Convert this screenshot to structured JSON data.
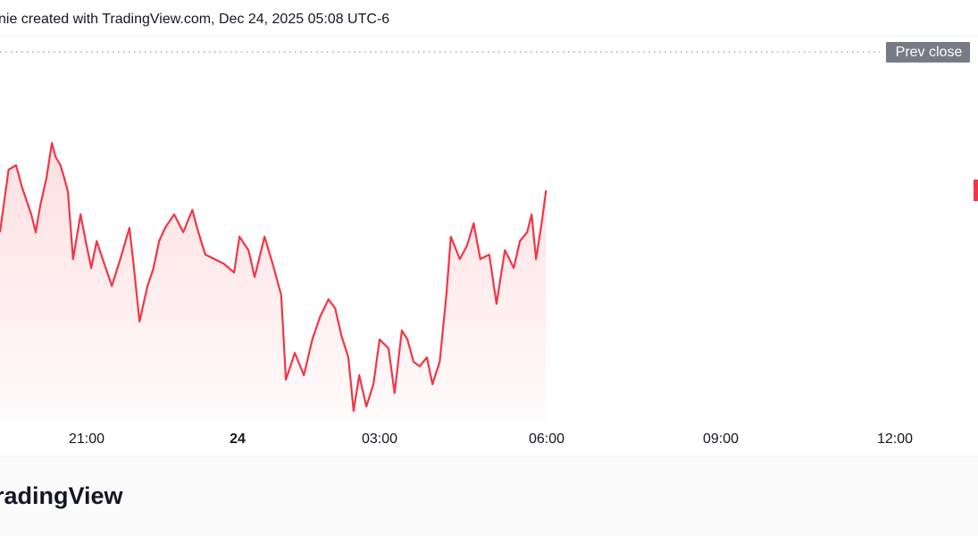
{
  "header": {
    "text": "nie created with TradingView.com, Dec 24, 2025 05:08 UTC-6"
  },
  "footer": {
    "logo": "radingView"
  },
  "chart_data": {
    "type": "area",
    "color": "#f23645",
    "x": [
      -4.72,
      -4.55,
      -4.4,
      -4.28,
      -4.1,
      -4.01,
      -3.92,
      -3.8,
      -3.69,
      -3.62,
      -3.52,
      -3.44,
      -3.37,
      -3.27,
      -3.12,
      -3.0,
      -2.91,
      -2.8,
      -2.68,
      -2.5,
      -2.33,
      -2.15,
      -2.06,
      -1.95,
      -1.79,
      -1.67,
      -1.56,
      -1.44,
      -1.26,
      -1.08,
      -0.9,
      -0.78,
      -0.64,
      -0.46,
      -0.28,
      -0.07,
      0.04,
      0.23,
      0.36,
      0.57,
      0.74,
      0.92,
      1.02,
      1.21,
      1.4,
      1.58,
      1.74,
      1.92,
      2.06,
      2.19,
      2.34,
      2.45,
      2.57,
      2.72,
      2.87,
      3.0,
      3.16,
      3.27,
      3.4,
      3.5,
      3.61,
      3.72,
      3.85,
      3.95,
      4.08,
      4.2,
      4.28,
      4.44,
      4.57,
      4.69,
      4.81,
      4.97,
      5.1,
      5.25,
      5.41,
      5.52,
      5.65,
      5.73,
      5.81,
      5.91,
      5.99
    ],
    "values": [
      210,
      280,
      285,
      260,
      230,
      210,
      240,
      270,
      310,
      295,
      285,
      270,
      255,
      180,
      230,
      195,
      170,
      200,
      180,
      150,
      180,
      215,
      170,
      110,
      150,
      170,
      200,
      215,
      230,
      210,
      235,
      210,
      185,
      180,
      175,
      165,
      205,
      190,
      160,
      205,
      175,
      140,
      45,
      75,
      50,
      90,
      115,
      135,
      125,
      95,
      70,
      10,
      50,
      15,
      40,
      90,
      80,
      30,
      100,
      90,
      65,
      60,
      70,
      40,
      65,
      140,
      205,
      180,
      195,
      220,
      180,
      185,
      130,
      190,
      170,
      200,
      210,
      230,
      180,
      220,
      257
    ],
    "xlim": [
      -4.72,
      13.43
    ],
    "xticks": [
      {
        "value": -3,
        "label": "21:00"
      },
      {
        "value": 0,
        "label": "24"
      },
      {
        "value": 3,
        "label": "03:00"
      },
      {
        "value": 6,
        "label": "06:00"
      },
      {
        "value": 9,
        "label": "09:00"
      },
      {
        "value": 12,
        "label": "12:00"
      }
    ],
    "ylim": [
      0,
      430
    ],
    "prev_close": {
      "label": "Prev close",
      "value": 412
    }
  }
}
